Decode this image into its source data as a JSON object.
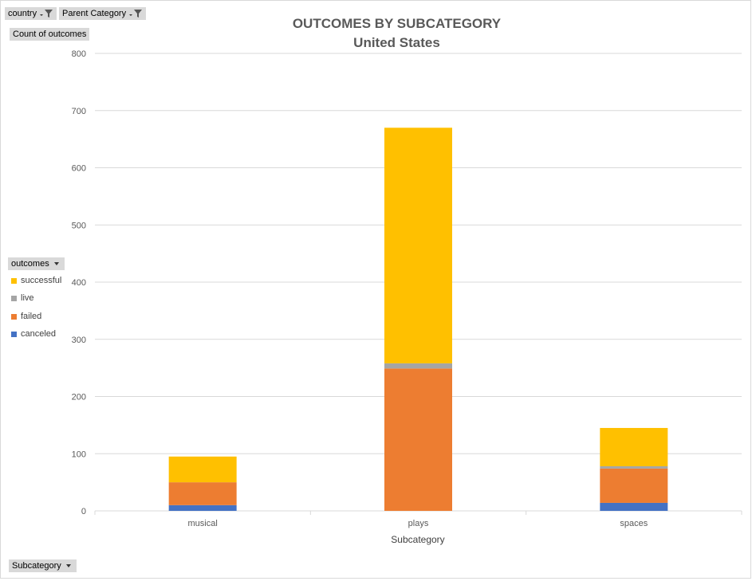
{
  "filters": {
    "country_label": "country",
    "parent_category_label": "Parent Category"
  },
  "value_field_label": "Count of outcomes",
  "legend_field_label": "outcomes",
  "axis_field_label": "Subcategory",
  "colors": {
    "successful": "#FFC000",
    "live": "#A5A5A5",
    "failed": "#ED7D31",
    "canceled": "#4472C4",
    "grid": "#d9d9d9",
    "axis_text": "#595959"
  },
  "chart_data": {
    "type": "bar",
    "stacked": true,
    "title": "OUTCOMES BY SUBCATEGORY",
    "subtitle": "United States",
    "xlabel": "Subcategory",
    "ylabel": "",
    "categories": [
      "musical",
      "plays",
      "spaces"
    ],
    "ylim": [
      0,
      800
    ],
    "yticks": [
      0,
      100,
      200,
      300,
      400,
      500,
      600,
      700,
      800
    ],
    "grid": true,
    "legend_position": "left",
    "series": [
      {
        "name": "canceled",
        "values": [
          10,
          0,
          14
        ]
      },
      {
        "name": "failed",
        "values": [
          40,
          249,
          60
        ]
      },
      {
        "name": "live",
        "values": [
          0,
          9,
          4
        ]
      },
      {
        "name": "successful",
        "values": [
          45,
          412,
          67
        ]
      }
    ]
  }
}
